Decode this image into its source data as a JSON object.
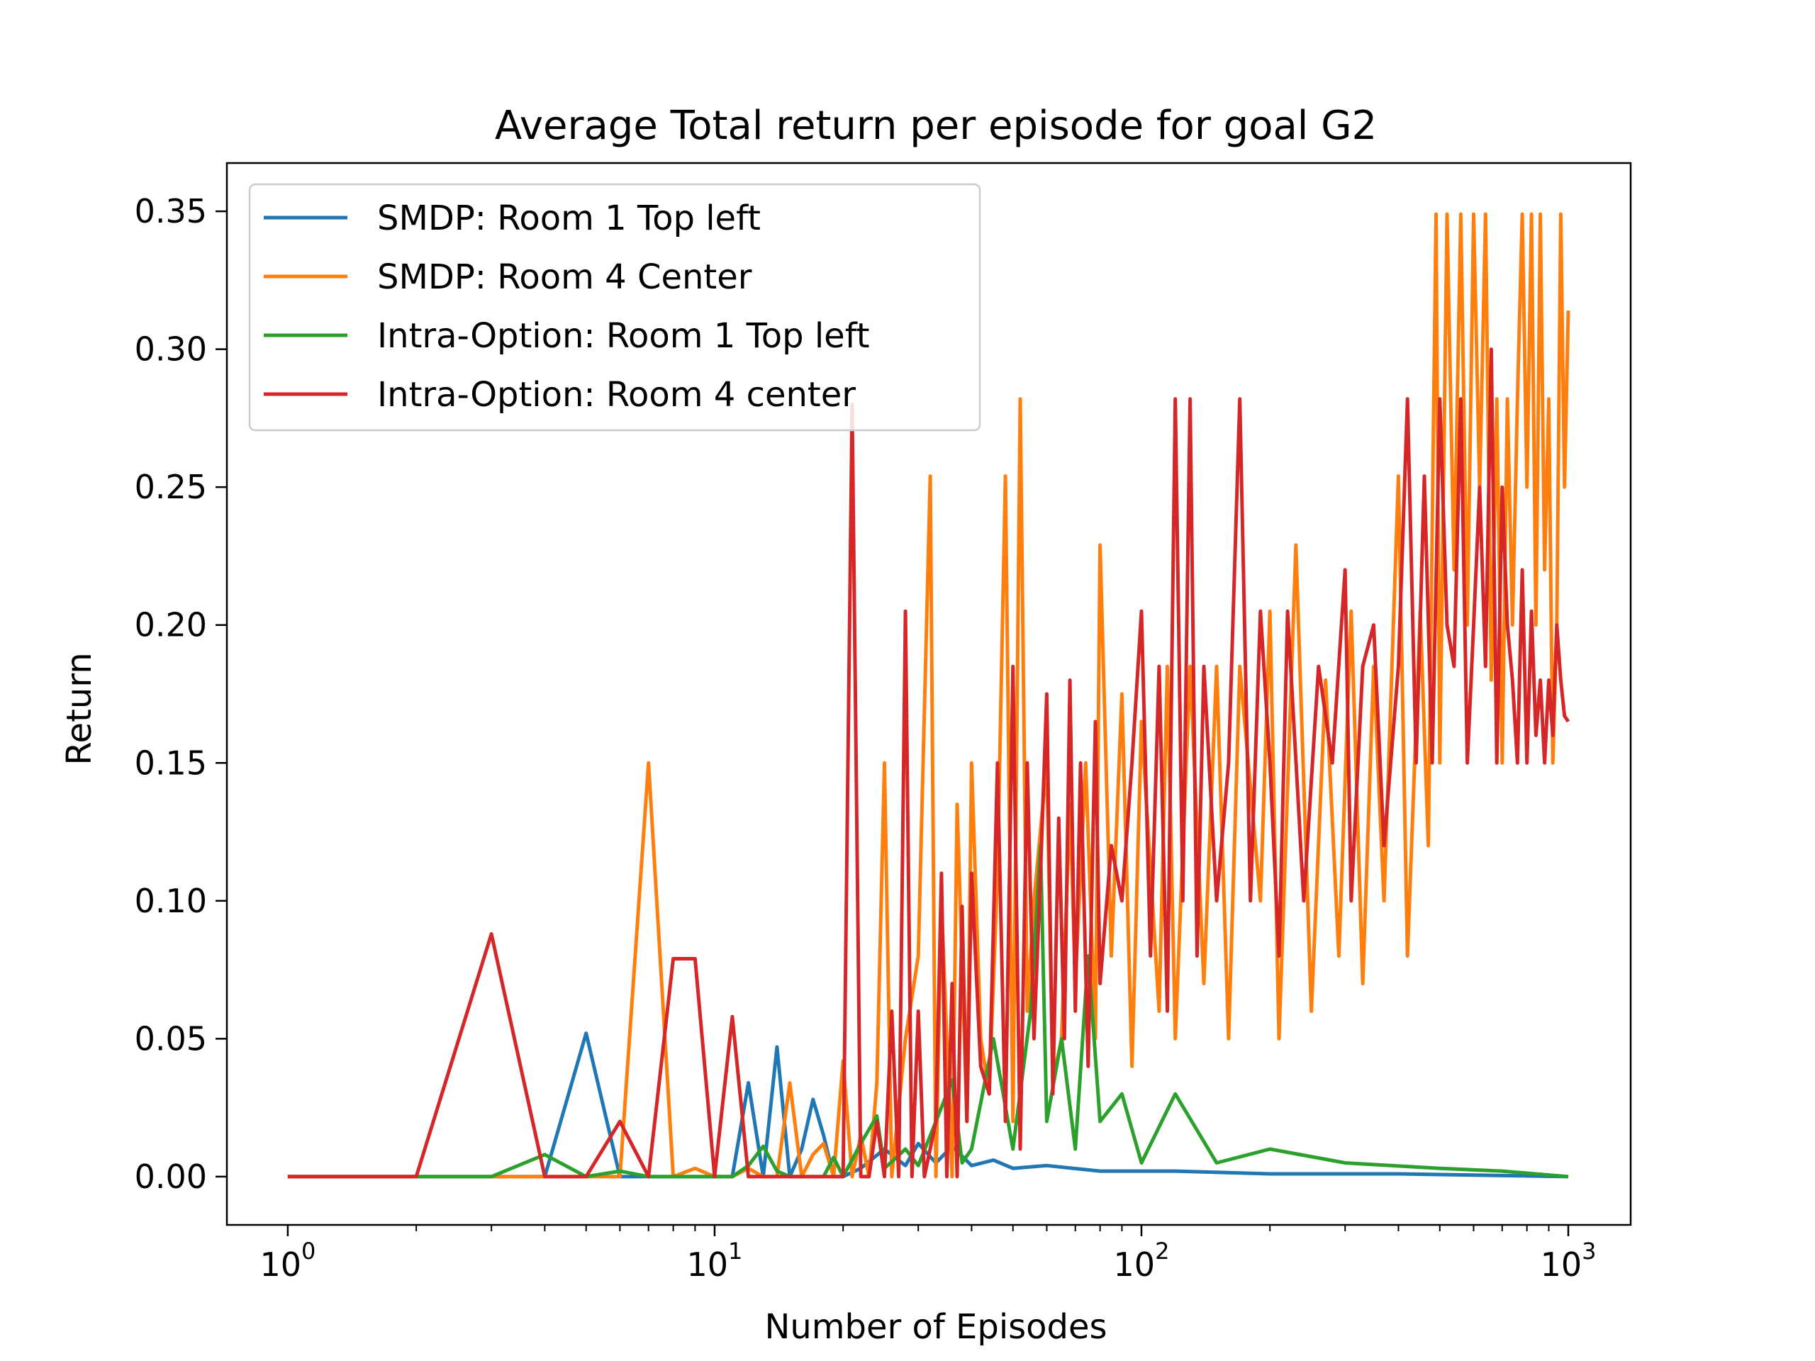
{
  "chart_data": {
    "type": "line",
    "title": "Average Total return per episode for goal G2",
    "xlabel": "Number of Episodes",
    "ylabel": "Return",
    "xscale": "log",
    "xlim": [
      0.72,
      1400
    ],
    "ylim": [
      -0.0175,
      0.3675
    ],
    "xticks": [
      {
        "base": "10",
        "exp": "0"
      },
      {
        "base": "10",
        "exp": "1"
      },
      {
        "base": "10",
        "exp": "2"
      },
      {
        "base": "10",
        "exp": "3"
      }
    ],
    "yticks": [
      "0.00",
      "0.05",
      "0.10",
      "0.15",
      "0.20",
      "0.25",
      "0.30",
      "0.35"
    ],
    "grid": false,
    "legend_position": "upper-left",
    "series": [
      {
        "name": "SMDP: Room 1 Top left",
        "color": "#1f77b4",
        "points": [
          [
            1,
            0
          ],
          [
            2,
            0
          ],
          [
            3,
            0
          ],
          [
            4,
            0
          ],
          [
            5,
            0.052
          ],
          [
            6,
            0
          ],
          [
            7,
            0
          ],
          [
            8,
            0
          ],
          [
            9,
            0
          ],
          [
            10,
            0
          ],
          [
            11,
            0
          ],
          [
            12,
            0.034
          ],
          [
            13,
            0
          ],
          [
            14,
            0.047
          ],
          [
            15,
            0
          ],
          [
            16,
            0.01
          ],
          [
            17,
            0.028
          ],
          [
            18,
            0.015
          ],
          [
            19,
            0
          ],
          [
            20,
            0
          ],
          [
            22,
            0.003
          ],
          [
            25,
            0.01
          ],
          [
            28,
            0.004
          ],
          [
            30,
            0.012
          ],
          [
            33,
            0.005
          ],
          [
            36,
            0.011
          ],
          [
            40,
            0.004
          ],
          [
            45,
            0.006
          ],
          [
            50,
            0.003
          ],
          [
            60,
            0.004
          ],
          [
            80,
            0.002
          ],
          [
            120,
            0.002
          ],
          [
            200,
            0.001
          ],
          [
            400,
            0.001
          ],
          [
            1000,
            0
          ]
        ]
      },
      {
        "name": "SMDP: Room 4 Center",
        "color": "#ff7f0e",
        "points": [
          [
            1,
            0
          ],
          [
            2,
            0
          ],
          [
            3,
            0
          ],
          [
            4,
            0
          ],
          [
            5,
            0
          ],
          [
            6,
            0
          ],
          [
            7,
            0.15
          ],
          [
            8,
            0
          ],
          [
            9,
            0.003
          ],
          [
            10,
            0
          ],
          [
            11,
            0
          ],
          [
            12,
            0.003
          ],
          [
            13,
            0
          ],
          [
            14,
            0
          ],
          [
            15,
            0.034
          ],
          [
            16,
            0
          ],
          [
            17,
            0.008
          ],
          [
            18,
            0.012
          ],
          [
            19,
            0
          ],
          [
            20,
            0.042
          ],
          [
            21,
            0
          ],
          [
            22,
            0.015
          ],
          [
            23,
            0
          ],
          [
            24,
            0.034
          ],
          [
            25,
            0.15
          ],
          [
            26,
            0
          ],
          [
            28,
            0.05
          ],
          [
            30,
            0.08
          ],
          [
            32,
            0.254
          ],
          [
            33,
            0
          ],
          [
            34,
            0.1
          ],
          [
            36,
            0
          ],
          [
            37,
            0.135
          ],
          [
            39,
            0.02
          ],
          [
            40,
            0.15
          ],
          [
            42,
            0.05
          ],
          [
            44,
            0.03
          ],
          [
            46,
            0.11
          ],
          [
            48,
            0.254
          ],
          [
            50,
            0.02
          ],
          [
            52,
            0.282
          ],
          [
            54,
            0.06
          ],
          [
            56,
            0.1
          ],
          [
            60,
            0.15
          ],
          [
            62,
            0.035
          ],
          [
            65,
            0.05
          ],
          [
            68,
            0.135
          ],
          [
            70,
            0.07
          ],
          [
            74,
            0.15
          ],
          [
            78,
            0.05
          ],
          [
            80,
            0.229
          ],
          [
            85,
            0.08
          ],
          [
            90,
            0.175
          ],
          [
            95,
            0.04
          ],
          [
            100,
            0.165
          ],
          [
            110,
            0.06
          ],
          [
            115,
            0.185
          ],
          [
            120,
            0.05
          ],
          [
            130,
            0.185
          ],
          [
            140,
            0.07
          ],
          [
            150,
            0.185
          ],
          [
            160,
            0.05
          ],
          [
            170,
            0.185
          ],
          [
            190,
            0.1
          ],
          [
            200,
            0.205
          ],
          [
            210,
            0.05
          ],
          [
            230,
            0.229
          ],
          [
            250,
            0.06
          ],
          [
            270,
            0.18
          ],
          [
            290,
            0.08
          ],
          [
            310,
            0.205
          ],
          [
            330,
            0.07
          ],
          [
            350,
            0.185
          ],
          [
            370,
            0.1
          ],
          [
            400,
            0.254
          ],
          [
            420,
            0.08
          ],
          [
            450,
            0.205
          ],
          [
            470,
            0.12
          ],
          [
            490,
            0.349
          ],
          [
            500,
            0.15
          ],
          [
            520,
            0.349
          ],
          [
            540,
            0.22
          ],
          [
            560,
            0.349
          ],
          [
            580,
            0.2
          ],
          [
            600,
            0.349
          ],
          [
            620,
            0.25
          ],
          [
            640,
            0.349
          ],
          [
            660,
            0.18
          ],
          [
            680,
            0.282
          ],
          [
            700,
            0.15
          ],
          [
            720,
            0.282
          ],
          [
            740,
            0.2
          ],
          [
            760,
            0.282
          ],
          [
            780,
            0.349
          ],
          [
            800,
            0.25
          ],
          [
            820,
            0.349
          ],
          [
            840,
            0.2
          ],
          [
            860,
            0.349
          ],
          [
            880,
            0.22
          ],
          [
            900,
            0.282
          ],
          [
            920,
            0.15
          ],
          [
            940,
            0.2
          ],
          [
            960,
            0.349
          ],
          [
            980,
            0.25
          ],
          [
            1000,
            0.314
          ]
        ]
      },
      {
        "name": "Intra-Option: Room 1 Top left",
        "color": "#2ca02c",
        "points": [
          [
            1,
            0
          ],
          [
            2,
            0
          ],
          [
            3,
            0
          ],
          [
            4,
            0.008
          ],
          [
            5,
            0
          ],
          [
            6,
            0.002
          ],
          [
            7,
            0
          ],
          [
            8,
            0
          ],
          [
            9,
            0
          ],
          [
            10,
            0
          ],
          [
            11,
            0
          ],
          [
            12,
            0.004
          ],
          [
            13,
            0.011
          ],
          [
            14,
            0.002
          ],
          [
            15,
            0
          ],
          [
            16,
            0
          ],
          [
            17,
            0
          ],
          [
            18,
            0
          ],
          [
            19,
            0.007
          ],
          [
            20,
            0
          ],
          [
            22,
            0.012
          ],
          [
            24,
            0.022
          ],
          [
            25,
            0.003
          ],
          [
            28,
            0.01
          ],
          [
            30,
            0.004
          ],
          [
            33,
            0.02
          ],
          [
            36,
            0.035
          ],
          [
            38,
            0.005
          ],
          [
            40,
            0.01
          ],
          [
            45,
            0.05
          ],
          [
            50,
            0.01
          ],
          [
            55,
            0.06
          ],
          [
            58,
            0.12
          ],
          [
            60,
            0.02
          ],
          [
            65,
            0.05
          ],
          [
            70,
            0.01
          ],
          [
            75,
            0.08
          ],
          [
            80,
            0.02
          ],
          [
            90,
            0.03
          ],
          [
            100,
            0.005
          ],
          [
            120,
            0.03
          ],
          [
            150,
            0.005
          ],
          [
            200,
            0.01
          ],
          [
            300,
            0.005
          ],
          [
            500,
            0.003
          ],
          [
            700,
            0.002
          ],
          [
            1000,
            0
          ]
        ]
      },
      {
        "name": "Intra-Option: Room 4 center",
        "color": "#d62728",
        "points": [
          [
            1,
            0
          ],
          [
            2,
            0
          ],
          [
            3,
            0.088
          ],
          [
            4,
            0
          ],
          [
            5,
            0
          ],
          [
            6,
            0.02
          ],
          [
            7,
            0
          ],
          [
            8,
            0.079
          ],
          [
            9,
            0.079
          ],
          [
            10,
            0
          ],
          [
            11,
            0.058
          ],
          [
            12,
            0
          ],
          [
            13,
            0
          ],
          [
            14,
            0
          ],
          [
            15,
            0
          ],
          [
            16,
            0
          ],
          [
            17,
            0
          ],
          [
            18,
            0
          ],
          [
            19,
            0
          ],
          [
            20,
            0
          ],
          [
            21,
            0.28
          ],
          [
            22,
            0
          ],
          [
            23,
            0
          ],
          [
            24,
            0.02
          ],
          [
            25,
            0
          ],
          [
            26,
            0.06
          ],
          [
            27,
            0
          ],
          [
            28,
            0.205
          ],
          [
            29,
            0
          ],
          [
            30,
            0.06
          ],
          [
            31,
            0
          ],
          [
            33,
            0.02
          ],
          [
            34,
            0.11
          ],
          [
            35,
            0
          ],
          [
            36,
            0.07
          ],
          [
            37,
            0
          ],
          [
            38,
            0.098
          ],
          [
            39,
            0.02
          ],
          [
            40,
            0.11
          ],
          [
            42,
            0.04
          ],
          [
            44,
            0.03
          ],
          [
            46,
            0.15
          ],
          [
            48,
            0.02
          ],
          [
            50,
            0.185
          ],
          [
            52,
            0.01
          ],
          [
            54,
            0.15
          ],
          [
            56,
            0.05
          ],
          [
            58,
            0.11
          ],
          [
            60,
            0.175
          ],
          [
            62,
            0.03
          ],
          [
            64,
            0.13
          ],
          [
            66,
            0.05
          ],
          [
            68,
            0.18
          ],
          [
            70,
            0.06
          ],
          [
            72,
            0.15
          ],
          [
            75,
            0.04
          ],
          [
            78,
            0.165
          ],
          [
            80,
            0.07
          ],
          [
            85,
            0.12
          ],
          [
            90,
            0.1
          ],
          [
            95,
            0.15
          ],
          [
            100,
            0.205
          ],
          [
            105,
            0.08
          ],
          [
            110,
            0.185
          ],
          [
            115,
            0.06
          ],
          [
            120,
            0.282
          ],
          [
            125,
            0.1
          ],
          [
            130,
            0.282
          ],
          [
            135,
            0.08
          ],
          [
            140,
            0.185
          ],
          [
            150,
            0.1
          ],
          [
            160,
            0.15
          ],
          [
            170,
            0.282
          ],
          [
            180,
            0.1
          ],
          [
            190,
            0.205
          ],
          [
            200,
            0.15
          ],
          [
            210,
            0.08
          ],
          [
            220,
            0.205
          ],
          [
            240,
            0.1
          ],
          [
            260,
            0.185
          ],
          [
            280,
            0.15
          ],
          [
            300,
            0.22
          ],
          [
            310,
            0.1
          ],
          [
            330,
            0.185
          ],
          [
            350,
            0.2
          ],
          [
            370,
            0.12
          ],
          [
            400,
            0.185
          ],
          [
            420,
            0.282
          ],
          [
            440,
            0.15
          ],
          [
            460,
            0.254
          ],
          [
            480,
            0.15
          ],
          [
            500,
            0.282
          ],
          [
            520,
            0.2
          ],
          [
            540,
            0.185
          ],
          [
            560,
            0.282
          ],
          [
            580,
            0.15
          ],
          [
            600,
            0.2
          ],
          [
            620,
            0.25
          ],
          [
            640,
            0.185
          ],
          [
            660,
            0.3
          ],
          [
            680,
            0.15
          ],
          [
            700,
            0.25
          ],
          [
            720,
            0.2
          ],
          [
            740,
            0.18
          ],
          [
            760,
            0.15
          ],
          [
            780,
            0.22
          ],
          [
            800,
            0.15
          ],
          [
            820,
            0.205
          ],
          [
            840,
            0.16
          ],
          [
            860,
            0.18
          ],
          [
            880,
            0.15
          ],
          [
            900,
            0.18
          ],
          [
            920,
            0.16
          ],
          [
            940,
            0.2
          ],
          [
            960,
            0.18
          ],
          [
            980,
            0.167
          ],
          [
            1000,
            0.165
          ]
        ]
      }
    ]
  }
}
